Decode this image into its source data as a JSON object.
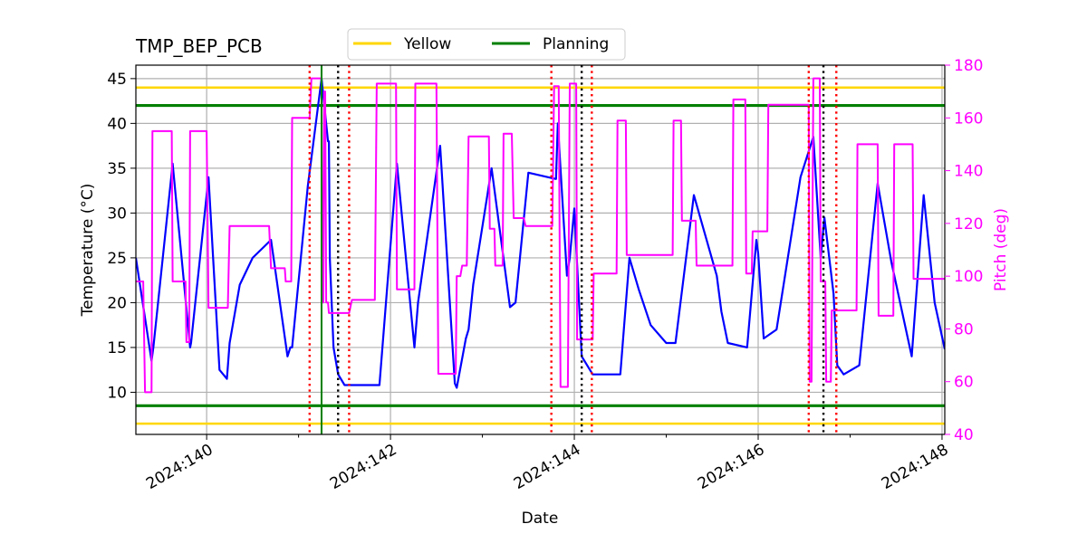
{
  "chart_data": {
    "type": "line",
    "title": "TMP_BEP_PCB",
    "xlabel": "Date",
    "ylabel": "Temperature ($^\\circ$C)",
    "ylabel_display": "Temperature (°C)",
    "y2label": "Pitch (deg)",
    "xlim": [
      139.23,
      148.03
    ],
    "ylim": [
      5.3,
      46.5
    ],
    "y2lim": [
      40,
      180
    ],
    "x_major_ticks": [
      140,
      142,
      144,
      146,
      148
    ],
    "x_tick_labels": [
      "2024:140",
      "2024:142",
      "2024:144",
      "2024:146",
      "2024:148"
    ],
    "x_minor_ticks": [
      141,
      143,
      145,
      147
    ],
    "y_ticks": [
      10,
      15,
      20,
      25,
      30,
      35,
      40,
      45
    ],
    "y_tick_labels": [
      "10",
      "15",
      "20",
      "25",
      "30",
      "35",
      "40",
      "45"
    ],
    "y2_ticks": [
      40,
      60,
      80,
      100,
      120,
      140,
      160,
      180
    ],
    "y2_tick_labels": [
      "40",
      "60",
      "80",
      "100",
      "120",
      "140",
      "160",
      "180"
    ],
    "grid": true,
    "legend": {
      "placement": "top-center, above axes",
      "entries": [
        {
          "label": "Yellow",
          "color": "#ffd700"
        },
        {
          "label": "Planning",
          "color": "#008000"
        }
      ]
    },
    "limits": {
      "yellow": [
        6.5,
        44.0
      ],
      "planning": [
        8.5,
        42.0
      ]
    },
    "now_marker": {
      "x": 141.25,
      "color": "#008000"
    },
    "red_dotted_lines": [
      141.12,
      141.55,
      143.75,
      144.19,
      146.55,
      146.85
    ],
    "black_dotted_lines": [
      141.43,
      144.08,
      146.71
    ],
    "series": [
      {
        "name": "TMP_BEP_PCB",
        "axis": "left",
        "color": "#0000ff",
        "x": [
          139.23,
          139.4,
          139.42,
          139.63,
          139.82,
          139.83,
          140.02,
          140.14,
          140.22,
          140.25,
          140.36,
          140.5,
          140.7,
          140.88,
          140.91,
          140.93,
          141.1,
          141.25,
          141.32,
          141.33,
          141.34,
          141.38,
          141.43,
          141.5,
          141.6,
          141.88,
          142.07,
          142.26,
          142.3,
          142.54,
          142.7,
          142.72,
          142.82,
          142.85,
          142.9,
          143.1,
          143.3,
          143.36,
          143.5,
          143.8,
          143.82,
          143.92,
          143.95,
          144.0,
          144.08,
          144.2,
          144.4,
          144.5,
          144.6,
          144.7,
          144.83,
          145.0,
          145.1,
          145.3,
          145.55,
          145.6,
          145.67,
          145.88,
          145.98,
          146.0,
          146.06,
          146.2,
          146.46,
          146.6,
          146.68,
          146.72,
          146.82,
          146.86,
          146.93,
          147.1,
          147.3,
          147.45,
          147.67,
          147.8,
          147.92,
          148.03
        ],
        "y": [
          25.0,
          13.5,
          15.0,
          35.5,
          15.0,
          15.5,
          34.0,
          12.5,
          11.5,
          15.5,
          22.0,
          25.0,
          27.0,
          14.0,
          15.0,
          15.0,
          33.0,
          45.0,
          38.0,
          38.0,
          25.0,
          15.0,
          12.0,
          10.8,
          10.8,
          10.8,
          35.5,
          15.0,
          20.0,
          37.5,
          11.0,
          10.5,
          16.0,
          17.0,
          22.0,
          35.0,
          19.5,
          20.0,
          34.5,
          33.8,
          40.0,
          23.0,
          25.0,
          30.5,
          14.0,
          12.0,
          12.0,
          12.0,
          25.0,
          21.5,
          17.5,
          15.5,
          15.5,
          32.0,
          23.0,
          19.0,
          15.5,
          15.0,
          27.0,
          25.5,
          16.0,
          17.0,
          34.0,
          38.5,
          25.0,
          29.5,
          21.0,
          13.0,
          12.0,
          13.0,
          33.3,
          24.5,
          14.0,
          32.0,
          20.0,
          14.8
        ]
      },
      {
        "name": "Pitch",
        "axis": "right",
        "color": "#ff00ff",
        "x": [
          139.23,
          139.31,
          139.33,
          139.36,
          139.4,
          139.41,
          139.62,
          139.63,
          139.77,
          139.78,
          139.81,
          139.82,
          140.0,
          140.02,
          140.23,
          140.25,
          140.68,
          140.7,
          140.85,
          140.86,
          140.92,
          140.93,
          141.12,
          141.14,
          141.25,
          141.26,
          141.27,
          141.28,
          141.29,
          141.3,
          141.32,
          141.33,
          141.55,
          141.58,
          141.83,
          141.85,
          142.06,
          142.07,
          142.26,
          142.27,
          142.5,
          142.52,
          142.71,
          142.72,
          142.76,
          142.78,
          142.83,
          142.85,
          143.07,
          143.08,
          143.13,
          143.14,
          143.22,
          143.23,
          143.32,
          143.34,
          143.45,
          143.47,
          143.76,
          143.78,
          143.83,
          143.85,
          143.93,
          143.95,
          144.02,
          144.03,
          144.2,
          144.21,
          144.46,
          144.47,
          144.56,
          144.57,
          144.74,
          144.75,
          145.07,
          145.08,
          145.16,
          145.17,
          145.32,
          145.33,
          145.38,
          145.39,
          145.72,
          145.73,
          145.86,
          145.87,
          145.93,
          145.94,
          146.1,
          146.11,
          146.55,
          146.56,
          146.58,
          146.6,
          146.67,
          146.68,
          146.73,
          146.74,
          146.79,
          146.8,
          146.85,
          146.86,
          147.07,
          147.08,
          147.3,
          147.31,
          147.47,
          147.48,
          147.68,
          147.69,
          147.91,
          147.92,
          148.03
        ],
        "y": [
          98,
          98,
          56,
          56,
          56,
          155,
          155,
          98,
          98,
          75,
          75,
          155,
          155,
          88,
          88,
          119,
          119,
          103,
          103,
          98,
          98,
          160,
          160,
          175,
          175,
          90,
          90,
          170,
          170,
          90,
          90,
          86,
          86,
          91,
          91,
          173,
          173,
          95,
          95,
          173,
          173,
          63,
          63,
          100,
          100,
          104,
          104,
          153,
          153,
          118,
          118,
          104,
          104,
          154,
          154,
          122,
          122,
          119,
          119,
          172,
          172,
          58,
          58,
          173,
          173,
          76,
          76,
          101,
          101,
          159,
          159,
          108,
          108,
          108,
          108,
          159,
          159,
          121,
          121,
          104,
          104,
          104,
          104,
          167,
          167,
          101,
          101,
          117,
          117,
          165,
          165,
          60,
          60,
          175,
          175,
          98,
          98,
          60,
          60,
          87,
          87,
          87,
          87,
          150,
          150,
          85,
          85,
          150,
          150,
          99,
          99,
          99,
          99
        ]
      }
    ]
  }
}
